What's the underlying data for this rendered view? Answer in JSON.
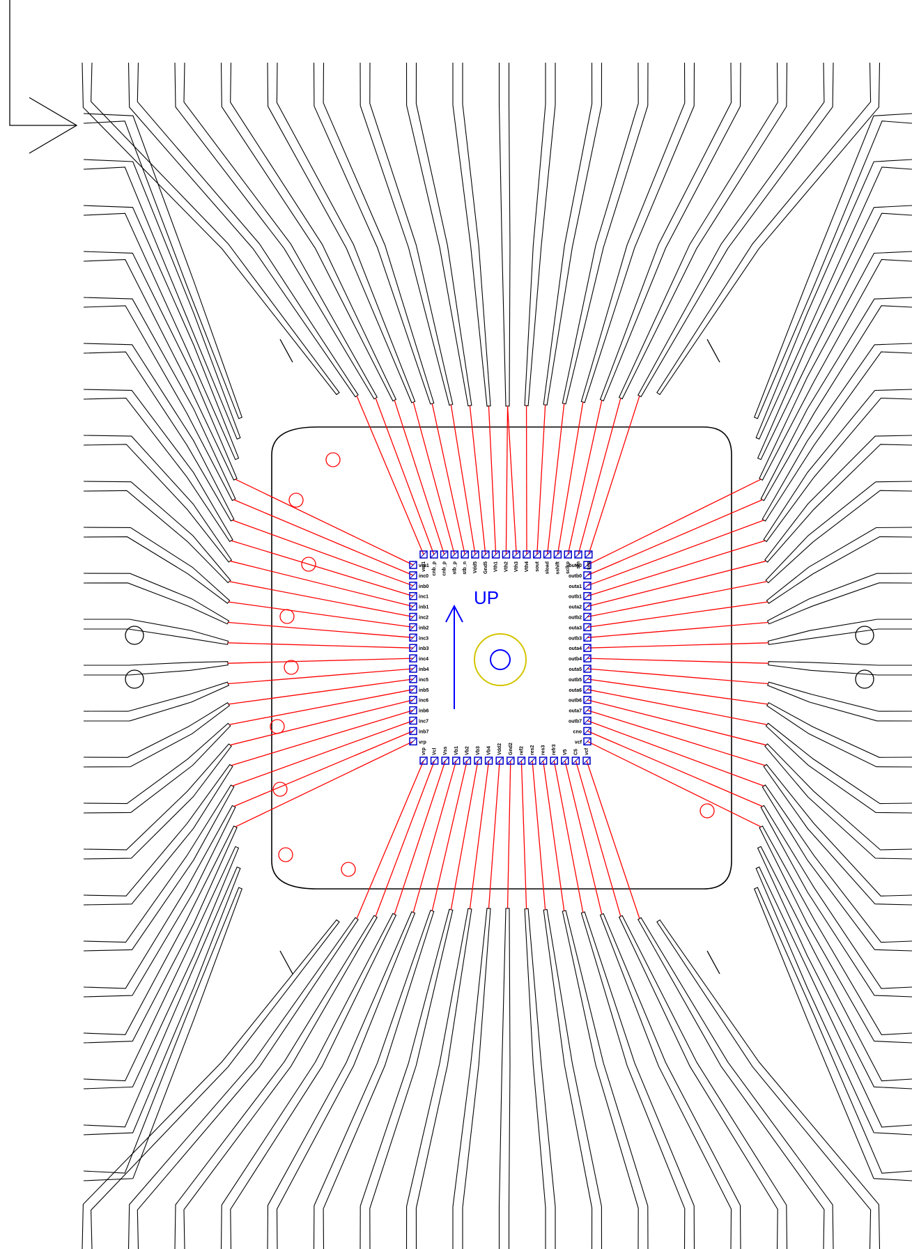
{
  "orientation_label": "UP",
  "colors": {
    "lead_frame": "#000000",
    "bond_wire": "#ff0000",
    "pad": "#0000cc",
    "orientation": "#0000ff",
    "fiducial": "#d4c400",
    "marker": "#ff0000"
  },
  "pins": {
    "top": [
      "vrp1",
      "cnb_p",
      "cnb_p",
      "stb_p",
      "stb_n",
      "Vdd5",
      "Gnd5",
      "Vth1",
      "Vth2",
      "Vth3",
      "Vth4",
      "sout",
      "sload",
      "sshift",
      "sclkp",
      "sfn",
      "sen"
    ],
    "left": [
      "vrp1",
      "inc0",
      "inb0",
      "inc1",
      "inb1",
      "inc2",
      "inb2",
      "inc3",
      "inb3",
      "inc4",
      "inb4",
      "inc5",
      "inb5",
      "inc6",
      "inb6",
      "inc7",
      "inb7",
      "vrp"
    ],
    "bottom": [
      "vrp",
      "Vcl",
      "Vss",
      "Vb1",
      "Vb2",
      "Vb3",
      "Vb4",
      "Vdd2",
      "Gnd2",
      "ref2",
      "res2",
      "res3",
      "refr3",
      "V5",
      "C5",
      "vcf"
    ],
    "right": [
      "outa0",
      "outb0",
      "outa1",
      "outb1",
      "outa2",
      "outb2",
      "outa3",
      "outb3",
      "outa4",
      "outb4",
      "outa5",
      "outb5",
      "outa6",
      "outb6",
      "outa7",
      "outb7",
      "cno",
      "vcf"
    ]
  }
}
